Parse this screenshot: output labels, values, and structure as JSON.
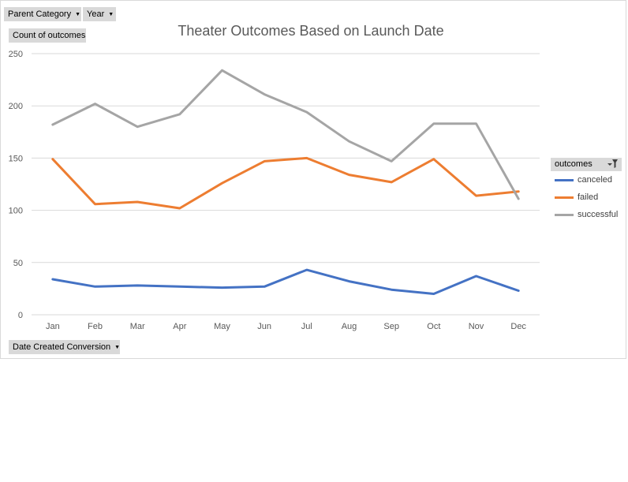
{
  "filters": {
    "parent_category": "Parent Category",
    "year": "Year",
    "value_field": "Count of outcomes",
    "axis_field": "Date Created Conversion"
  },
  "icons": {
    "dropdown": "chevron-down-icon",
    "legend_filter": "filter-icon"
  },
  "legend": {
    "title": "outcomes",
    "placement": "right",
    "items": [
      "canceled",
      "failed",
      "successful"
    ]
  },
  "chart_data": {
    "type": "line",
    "title": "Theater Outcomes Based on Launch Date",
    "xlabel": "",
    "ylabel": "",
    "categories": [
      "Jan",
      "Feb",
      "Mar",
      "Apr",
      "May",
      "Jun",
      "Jul",
      "Aug",
      "Sep",
      "Oct",
      "Nov",
      "Dec"
    ],
    "ylim": [
      0,
      250
    ],
    "yticks": [
      0,
      50,
      100,
      150,
      200,
      250
    ],
    "grid": true,
    "series": [
      {
        "name": "canceled",
        "color": "#4472c4",
        "values": [
          34,
          27,
          28,
          27,
          26,
          27,
          43,
          32,
          24,
          20,
          37,
          23
        ]
      },
      {
        "name": "failed",
        "color": "#ed7d31",
        "values": [
          149,
          106,
          108,
          102,
          126,
          147,
          150,
          134,
          127,
          149,
          114,
          118
        ]
      },
      {
        "name": "successful",
        "color": "#a5a5a5",
        "values": [
          182,
          202,
          180,
          192,
          234,
          211,
          194,
          166,
          147,
          183,
          183,
          111
        ]
      }
    ]
  }
}
